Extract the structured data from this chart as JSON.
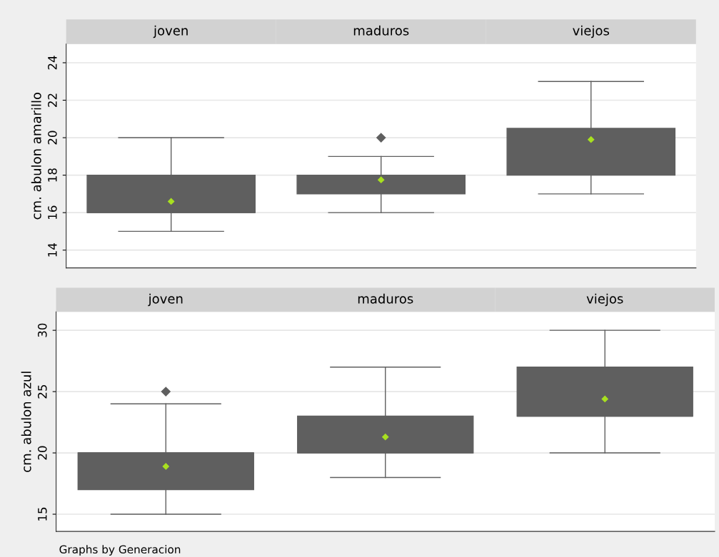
{
  "chart_data": [
    {
      "type": "box",
      "categories": [
        "joven",
        "maduros",
        "viejos"
      ],
      "ylabel": "cm. abulon amarillo",
      "ylim": [
        13.05,
        25
      ],
      "yticks": [
        14,
        16,
        18,
        20,
        22,
        24
      ],
      "grid": "y",
      "color": "#5f5f5f",
      "boxes": [
        {
          "low": 15,
          "q1": 16,
          "median": 16,
          "q3": 18,
          "high": 20,
          "mean": 16.6
        },
        {
          "low": 16,
          "q1": 17,
          "median": 18,
          "q3": 18,
          "high": 19,
          "mean": 17.75,
          "outliers": [
            20
          ]
        },
        {
          "low": 17,
          "q1": 18,
          "median": 20,
          "q3": 20.5,
          "high": 23,
          "mean": 19.9
        }
      ]
    },
    {
      "type": "box",
      "categories": [
        "joven",
        "maduros",
        "viejos"
      ],
      "ylabel": "cm. abulon azul",
      "ylim": [
        13.6,
        31.5
      ],
      "yticks": [
        15,
        20,
        25,
        30
      ],
      "grid": "y",
      "color": "#5f5f5f",
      "boxes": [
        {
          "low": 15,
          "q1": 17,
          "median": 20,
          "q3": 20,
          "high": 24,
          "mean": 18.9,
          "outliers": [
            25
          ]
        },
        {
          "low": 18,
          "q1": 20,
          "median": 20,
          "q3": 23,
          "high": 27,
          "mean": 21.3
        },
        {
          "low": 20,
          "q1": 23,
          "median": 23,
          "q3": 27,
          "high": 30,
          "mean": 24.4
        }
      ],
      "annotations": [
        "Graphs by Generacion"
      ]
    }
  ]
}
